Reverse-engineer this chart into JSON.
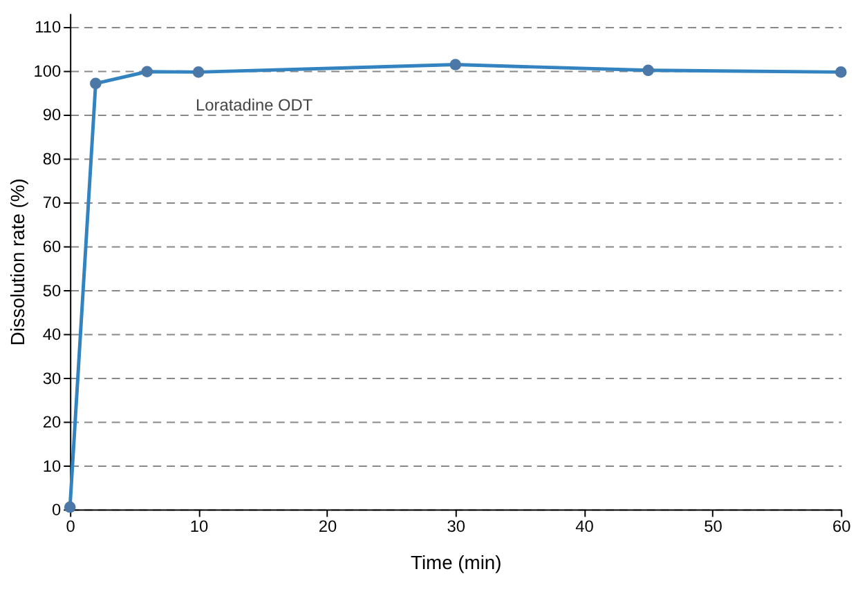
{
  "chart_data": {
    "type": "line",
    "xlabel": "Time (min)",
    "ylabel": "Dissolution rate (%)",
    "x": [
      0,
      2,
      6,
      10,
      30,
      45,
      60
    ],
    "series": [
      {
        "name": "Loratadine ODT",
        "color": "#3383c0",
        "values": [
          0.5,
          97,
          99.7,
          99.6,
          101.3,
          100,
          99.6
        ]
      }
    ],
    "xlim": [
      0,
      60
    ],
    "xticks": [
      0,
      10,
      20,
      30,
      40,
      50,
      60
    ],
    "ylim": [
      0,
      113
    ],
    "yticks": [
      0,
      10,
      20,
      30,
      40,
      50,
      60,
      70,
      80,
      90,
      100,
      110
    ],
    "grid": "y",
    "marker": "circle",
    "line_style": "solid",
    "legend": false
  }
}
